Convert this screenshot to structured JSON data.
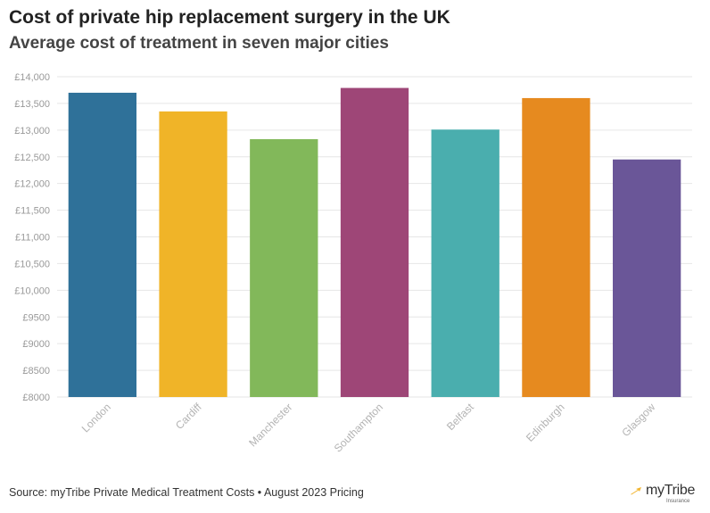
{
  "title": "Cost of private hip replacement surgery in the UK",
  "subtitle": "Average cost of treatment in seven major cities",
  "source": "Source: myTribe Private Medical Treatment Costs • August 2023 Pricing",
  "brand": {
    "name_prefix": "my",
    "name_suffix": "Tribe",
    "tagline": "Insurance",
    "icon": "arrow-icon",
    "accent_color": "#f2b632"
  },
  "chart_data": {
    "type": "bar",
    "title": "Cost of private hip replacement surgery in the UK",
    "subtitle": "Average cost of treatment in seven major cities",
    "xlabel": "",
    "ylabel": "",
    "categories": [
      "London",
      "Cardiff",
      "Manchester",
      "Southampton",
      "Belfast",
      "Edinburgh",
      "Glasgow"
    ],
    "values": [
      13700,
      13350,
      12830,
      13790,
      13010,
      13600,
      12450
    ],
    "colors": [
      "#2f7199",
      "#f0b428",
      "#82b85a",
      "#9e4677",
      "#4aaeae",
      "#e68a1f",
      "#6a5698"
    ],
    "ylim": [
      8000,
      14000
    ],
    "yticks": [
      8000,
      8500,
      9000,
      9500,
      10000,
      10500,
      11000,
      11500,
      12000,
      12500,
      13000,
      13500,
      14000
    ],
    "ytick_labels": [
      "£8000",
      "£8500",
      "£9000",
      "£9500",
      "£10,000",
      "£10,500",
      "£11,000",
      "£11,500",
      "£12,000",
      "£12,500",
      "£13,000",
      "£13,500",
      "£14,000"
    ],
    "grid": true,
    "legend": "none"
  }
}
